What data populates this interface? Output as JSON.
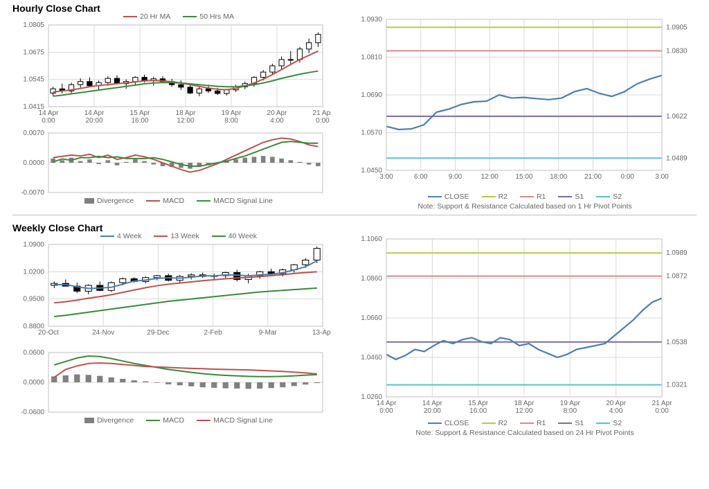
{
  "colors": {
    "grid": "#d9d9d9",
    "axis": "#bfbfbf",
    "text": "#666666",
    "red": "#c0504d",
    "green": "#3a8a3a",
    "blue": "#4a7fb0",
    "purple": "#7a6aa8",
    "cyan": "#55c3d0",
    "olive": "#b8c84a",
    "salmon": "#d88a8a",
    "grey": "#808080"
  },
  "panel1": {
    "title": "Hourly Close Chart",
    "left_top": {
      "type": "candlestick-with-ma",
      "ylim": [
        1.0415,
        1.0805
      ],
      "yticks": [
        1.0415,
        1.0545,
        1.0675,
        1.0805
      ],
      "xticks": [
        "14 Apr\n0:00",
        "14 Apr\n20:00",
        "15 Apr\n16:00",
        "18 Apr\n12:00",
        "19 Apr\n8:00",
        "20 Apr\n4:00",
        "21 Apr\n0:00"
      ],
      "legend": [
        {
          "label": "20 Hr MA",
          "type": "line",
          "color": "#c0504d"
        },
        {
          "label": "50 Hrs MA",
          "type": "line",
          "color": "#3a8a3a"
        }
      ],
      "ohlc": [
        [
          1.048,
          1.051,
          1.0465,
          1.05
        ],
        [
          1.05,
          1.0525,
          1.0478,
          1.049
        ],
        [
          1.049,
          1.053,
          1.048,
          1.052
        ],
        [
          1.052,
          1.055,
          1.0505,
          1.0535
        ],
        [
          1.0535,
          1.0555,
          1.051,
          1.0515
        ],
        [
          1.0515,
          1.054,
          1.0495,
          1.053
        ],
        [
          1.053,
          1.056,
          1.0515,
          1.055
        ],
        [
          1.055,
          1.0565,
          1.052,
          1.0525
        ],
        [
          1.0525,
          1.0545,
          1.05,
          1.0535
        ],
        [
          1.0535,
          1.056,
          1.052,
          1.0555
        ],
        [
          1.0555,
          1.0568,
          1.053,
          1.054
        ],
        [
          1.054,
          1.0558,
          1.0515,
          1.0548
        ],
        [
          1.0548,
          1.056,
          1.053,
          1.0535
        ],
        [
          1.0535,
          1.0548,
          1.051,
          1.052
        ],
        [
          1.052,
          1.054,
          1.0495,
          1.0508
        ],
        [
          1.0508,
          1.0525,
          1.0475,
          1.048
        ],
        [
          1.048,
          1.051,
          1.0465,
          1.05
        ],
        [
          1.05,
          1.052,
          1.048,
          1.049
        ],
        [
          1.049,
          1.0505,
          1.047,
          1.0478
        ],
        [
          1.0478,
          1.05,
          1.0468,
          1.0495
        ],
        [
          1.0495,
          1.052,
          1.0485,
          1.051
        ],
        [
          1.051,
          1.0535,
          1.0498,
          1.0525
        ],
        [
          1.0525,
          1.056,
          1.051,
          1.0555
        ],
        [
          1.0555,
          1.059,
          1.054,
          1.058
        ],
        [
          1.058,
          1.062,
          1.0565,
          1.061
        ],
        [
          1.061,
          1.0655,
          1.0595,
          1.064
        ],
        [
          1.064,
          1.068,
          1.062,
          1.064
        ],
        [
          1.064,
          1.07,
          1.0625,
          1.069
        ],
        [
          1.069,
          1.074,
          1.067,
          1.072
        ],
        [
          1.072,
          1.077,
          1.07,
          1.076
        ]
      ],
      "ma20": [
        1.0485,
        1.049,
        1.0495,
        1.0502,
        1.051,
        1.0516,
        1.052,
        1.0525,
        1.0528,
        1.0533,
        1.0538,
        1.054,
        1.0538,
        1.0534,
        1.0528,
        1.052,
        1.0512,
        1.0504,
        1.0498,
        1.0496,
        1.0502,
        1.0514,
        1.0528,
        1.0546,
        1.0568,
        1.0592,
        1.0616,
        1.064,
        1.066,
        1.068
      ],
      "ma50": [
        1.0465,
        1.047,
        1.0476,
        1.0482,
        1.0488,
        1.0494,
        1.05,
        1.0506,
        1.0512,
        1.0518,
        1.0524,
        1.0528,
        1.053,
        1.053,
        1.0528,
        1.0524,
        1.052,
        1.0516,
        1.0512,
        1.051,
        1.051,
        1.0514,
        1.052,
        1.0528,
        1.0538,
        1.055,
        1.056,
        1.057,
        1.0578,
        1.0585
      ]
    },
    "left_bottom": {
      "type": "macd",
      "ylim": [
        -0.007,
        0.007
      ],
      "yticks": [
        -0.007,
        0.0,
        0.007
      ],
      "legend": [
        {
          "label": "Divergence",
          "type": "bar",
          "color": "#808080"
        },
        {
          "label": "MACD",
          "type": "line",
          "color": "#c0504d"
        },
        {
          "label": "MACD Signal Line",
          "type": "line",
          "color": "#3a8a3a"
        }
      ],
      "divergence": [
        0.001,
        0.0006,
        0.0012,
        0.0004,
        0.0008,
        -0.0003,
        0.0006,
        -0.0006,
        0.0002,
        0.0008,
        0.0004,
        -0.0004,
        -0.0008,
        -0.001,
        -0.0012,
        -0.0014,
        -0.001,
        -0.0006,
        -0.0002,
        0.0004,
        0.0008,
        0.0012,
        0.0014,
        0.0016,
        0.0014,
        0.001,
        0.0006,
        0.0002,
        -0.0004,
        -0.0008
      ],
      "macd": [
        0.0012,
        0.0015,
        0.0018,
        0.0016,
        0.002,
        0.0012,
        0.0018,
        0.0008,
        0.0012,
        0.0018,
        0.0014,
        0.0008,
        0.0,
        -0.0008,
        -0.0016,
        -0.0022,
        -0.0018,
        -0.001,
        -0.0002,
        0.0008,
        0.0018,
        0.0028,
        0.0038,
        0.0048,
        0.0054,
        0.0058,
        0.0056,
        0.005,
        0.0042,
        0.0038
      ],
      "signal": [
        0.0002,
        0.0009,
        0.0006,
        0.0012,
        0.0012,
        0.0015,
        0.0012,
        0.0014,
        0.001,
        0.001,
        0.001,
        0.0012,
        0.0008,
        0.0002,
        -0.0004,
        -0.0008,
        -0.0008,
        -0.0004,
        0.0,
        0.0004,
        0.001,
        0.0016,
        0.0024,
        0.0032,
        0.004,
        0.0048,
        0.005,
        0.0048,
        0.0046,
        0.0046
      ]
    },
    "right": {
      "type": "sr-line",
      "ylim": [
        1.045,
        1.093
      ],
      "yticks": [
        1.045,
        1.057,
        1.069,
        1.081,
        1.093
      ],
      "xticks": [
        "3:00",
        "6:00",
        "9:00",
        "12:00",
        "15:00",
        "18:00",
        "21:00",
        "0:00",
        "3:00"
      ],
      "close": [
        1.059,
        1.058,
        1.0582,
        1.0595,
        1.0635,
        1.0645,
        1.066,
        1.0668,
        1.067,
        1.069,
        1.068,
        1.0682,
        1.0678,
        1.0675,
        1.068,
        1.07,
        1.071,
        1.0695,
        1.0685,
        1.07,
        1.0725,
        1.074,
        1.0752
      ],
      "levels": {
        "R2": {
          "value": 1.0905,
          "color": "#b8c84a"
        },
        "R1": {
          "value": 1.083,
          "color": "#d88a8a"
        },
        "S1": {
          "value": 1.0622,
          "color": "#7a6aa8"
        },
        "S2": {
          "value": 1.0489,
          "color": "#55c3d0"
        }
      },
      "legend": [
        {
          "label": "CLOSE",
          "type": "line",
          "color": "#4a7fb0"
        },
        {
          "label": "R2",
          "type": "line",
          "color": "#b8c84a"
        },
        {
          "label": "R1",
          "type": "line",
          "color": "#d88a8a"
        },
        {
          "label": "S1",
          "type": "line",
          "color": "#7a6aa8"
        },
        {
          "label": "S2",
          "type": "line",
          "color": "#55c3d0"
        }
      ],
      "note": "Note: Support & Resistance Calculated based on 1 Hr Pivot Points"
    }
  },
  "panel2": {
    "title": "Weekly Close Chart",
    "left_top": {
      "type": "candlestick-with-ma",
      "ylim": [
        0.88,
        1.09
      ],
      "yticks": [
        0.88,
        0.95,
        1.02,
        1.09
      ],
      "xticks": [
        "20-Oct",
        "24-Nov",
        "29-Dec",
        "2-Feb",
        "9-Mar",
        "13-Apr"
      ],
      "legend": [
        {
          "label": "4 Week",
          "type": "line",
          "color": "#4a7fb0"
        },
        {
          "label": "13 Week",
          "type": "line",
          "color": "#c0504d"
        },
        {
          "label": "40 Week",
          "type": "line",
          "color": "#3a8a3a"
        }
      ],
      "ohlc": [
        [
          0.985,
          0.995,
          0.978,
          0.99
        ],
        [
          0.99,
          1.0,
          0.982,
          0.983
        ],
        [
          0.983,
          0.992,
          0.965,
          0.97
        ],
        [
          0.97,
          0.988,
          0.962,
          0.985
        ],
        [
          0.985,
          0.995,
          0.97,
          0.972
        ],
        [
          0.972,
          0.995,
          0.968,
          0.992
        ],
        [
          0.992,
          1.005,
          0.985,
          1.002
        ],
        [
          1.002,
          1.006,
          0.992,
          0.995
        ],
        [
          0.995,
          1.008,
          0.99,
          1.005
        ],
        [
          1.005,
          1.012,
          0.998,
          1.01
        ],
        [
          1.01,
          1.015,
          0.995,
          0.998
        ],
        [
          0.998,
          1.012,
          0.992,
          1.008
        ],
        [
          1.008,
          1.016,
          1.0,
          1.012
        ],
        [
          1.012,
          1.018,
          1.004,
          1.008
        ],
        [
          1.008,
          1.015,
          1.001,
          1.01
        ],
        [
          1.01,
          1.02,
          1.002,
          1.018
        ],
        [
          1.018,
          1.025,
          0.995,
          1.0
        ],
        [
          1.0,
          1.015,
          0.99,
          1.01
        ],
        [
          1.01,
          1.022,
          1.002,
          1.02
        ],
        [
          1.02,
          1.028,
          1.01,
          1.015
        ],
        [
          1.015,
          1.028,
          1.008,
          1.025
        ],
        [
          1.025,
          1.04,
          1.018,
          1.038
        ],
        [
          1.038,
          1.055,
          1.03,
          1.05
        ],
        [
          1.05,
          1.085,
          1.042,
          1.08
        ]
      ],
      "ma4": [
        0.987,
        0.987,
        0.9815,
        0.977,
        0.978,
        0.98,
        0.988,
        0.996,
        0.9985,
        1.003,
        1.0045,
        1.0035,
        1.006,
        1.0095,
        1.0095,
        1.012,
        1.0115,
        1.0095,
        1.012,
        1.0135,
        1.0175,
        1.0245,
        1.033,
        1.048
      ],
      "ma13": [
        0.94,
        0.943,
        0.947,
        0.952,
        0.956,
        0.961,
        0.967,
        0.973,
        0.979,
        0.984,
        0.988,
        0.991,
        0.994,
        0.997,
        0.9995,
        1.002,
        1.004,
        1.0055,
        1.0075,
        1.01,
        1.0125,
        1.0155,
        1.018,
        1.02
      ],
      "ma40": [
        0.905,
        0.908,
        0.912,
        0.916,
        0.92,
        0.924,
        0.928,
        0.932,
        0.936,
        0.94,
        0.944,
        0.947,
        0.95,
        0.953,
        0.956,
        0.959,
        0.962,
        0.965,
        0.968,
        0.97,
        0.972,
        0.974,
        0.976,
        0.978
      ]
    },
    "left_bottom": {
      "type": "macd",
      "ylim": [
        -0.06,
        0.06
      ],
      "yticks": [
        -0.06,
        0.0,
        0.06
      ],
      "legend": [
        {
          "label": "Divergence",
          "type": "bar",
          "color": "#808080"
        },
        {
          "label": "MACD",
          "type": "line",
          "color": "#3a8a3a"
        },
        {
          "label": "MACD Signal Line",
          "type": "line",
          "color": "#c0504d"
        }
      ],
      "divergence": [
        0.012,
        0.014,
        0.016,
        0.015,
        0.013,
        0.01,
        0.007,
        0.004,
        0.002,
        -0.001,
        -0.004,
        -0.006,
        -0.008,
        -0.01,
        -0.011,
        -0.012,
        -0.0125,
        -0.013,
        -0.0125,
        -0.0115,
        -0.01,
        -0.0075,
        -0.0045,
        -0.0015
      ],
      "macd": [
        0.035,
        0.042,
        0.049,
        0.053,
        0.052,
        0.048,
        0.043,
        0.038,
        0.034,
        0.03,
        0.026,
        0.023,
        0.02,
        0.0175,
        0.0155,
        0.014,
        0.013,
        0.012,
        0.0115,
        0.0115,
        0.012,
        0.013,
        0.0145,
        0.0155
      ],
      "signal": [
        0.01,
        0.026,
        0.033,
        0.038,
        0.039,
        0.038,
        0.036,
        0.034,
        0.032,
        0.031,
        0.03,
        0.029,
        0.028,
        0.0275,
        0.0265,
        0.026,
        0.0255,
        0.025,
        0.024,
        0.023,
        0.022,
        0.0205,
        0.019,
        0.017
      ]
    },
    "right": {
      "type": "sr-line",
      "ylim": [
        1.026,
        1.106
      ],
      "yticks": [
        1.026,
        1.046,
        1.066,
        1.086,
        1.106
      ],
      "xticks": [
        "14 Apr\n0:00",
        "14 Apr\n20:00",
        "15 Apr\n16:00",
        "18 Apr\n12:00",
        "19 Apr\n8:00",
        "20 Apr\n4:00",
        "21 Apr\n0:00"
      ],
      "close": [
        1.0475,
        1.045,
        1.047,
        1.05,
        1.049,
        1.052,
        1.0545,
        1.053,
        1.055,
        1.056,
        1.054,
        1.053,
        1.056,
        1.055,
        1.052,
        1.053,
        1.05,
        1.048,
        1.046,
        1.0475,
        1.05,
        1.051,
        1.052,
        1.053,
        1.057,
        1.061,
        1.065,
        1.07,
        1.074,
        1.076
      ],
      "levels": {
        "R2": {
          "value": 1.0989,
          "color": "#b8c84a"
        },
        "R1": {
          "value": 1.0872,
          "color": "#d88a8a"
        },
        "S1": {
          "value": 1.0538,
          "color": "#7a6aa8"
        },
        "S2": {
          "value": 1.0321,
          "color": "#55c3d0"
        }
      },
      "legend": [
        {
          "label": "CLOSE",
          "type": "line",
          "color": "#4a7fb0"
        },
        {
          "label": "R2",
          "type": "line",
          "color": "#b8c84a"
        },
        {
          "label": "R1",
          "type": "line",
          "color": "#d88a8a"
        },
        {
          "label": "S1",
          "type": "line",
          "color": "#7a6aa8"
        },
        {
          "label": "S2",
          "type": "line",
          "color": "#55c3d0"
        }
      ],
      "note": "Note: Support & Resistance Calculated based on 24 Hr Pivot Points"
    }
  }
}
